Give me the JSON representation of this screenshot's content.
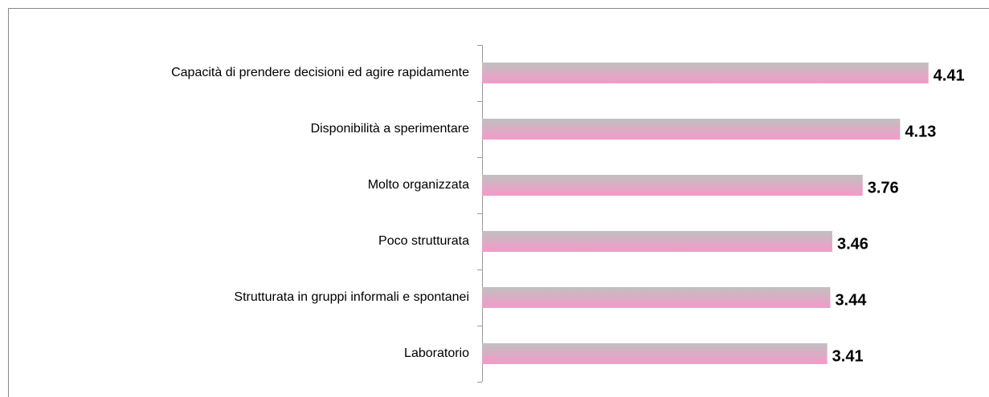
{
  "chart_data": {
    "type": "hbar",
    "categories": [
      "Capacità di prendere decisioni ed agire rapidamente",
      "Disponibilità a sperimentare",
      "Molto organizzata",
      "Poco strutturata",
      "Strutturata in gruppi informali e spontanei",
      "Laboratorio"
    ],
    "values": [
      4.41,
      4.13,
      3.76,
      3.46,
      3.44,
      3.41
    ],
    "color": [
      "#c0c0c0",
      "#f49ac8"
    ],
    "xlim": [
      0,
      5
    ]
  }
}
